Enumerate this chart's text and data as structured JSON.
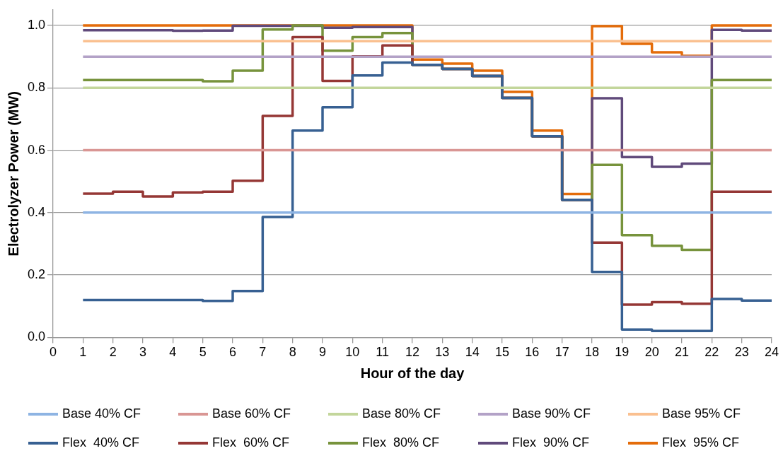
{
  "chart_data": {
    "type": "step",
    "xlabel": "Hour of the day",
    "ylabel": "Electrolyzer Power (MW)",
    "x": [
      1,
      2,
      3,
      4,
      5,
      6,
      7,
      8,
      9,
      10,
      11,
      12,
      13,
      14,
      15,
      16,
      17,
      18,
      19,
      20,
      21,
      22,
      23,
      24
    ],
    "xlim": [
      0,
      24
    ],
    "xticks": [
      0,
      1,
      2,
      3,
      4,
      5,
      6,
      7,
      8,
      9,
      10,
      11,
      12,
      13,
      14,
      15,
      16,
      17,
      18,
      19,
      20,
      21,
      22,
      23,
      24
    ],
    "ylim": [
      0,
      1.05
    ],
    "yticks": [
      {
        "value": 0,
        "label": "0.0"
      },
      {
        "value": 0.2,
        "label": "0.2"
      },
      {
        "value": 0.4,
        "label": "0.4"
      },
      {
        "value": 0.6,
        "label": "0.6"
      },
      {
        "value": 0.8,
        "label": "0.8"
      },
      {
        "value": 1,
        "label": "1.0"
      }
    ],
    "grid": "y",
    "legend": "bottom",
    "series": [
      {
        "name": "Base 40% CF",
        "color": "#8eb4e3",
        "values": [
          0.4,
          0.4,
          0.4,
          0.4,
          0.4,
          0.4,
          0.4,
          0.4,
          0.4,
          0.4,
          0.4,
          0.4,
          0.4,
          0.4,
          0.4,
          0.4,
          0.4,
          0.4,
          0.4,
          0.4,
          0.4,
          0.4,
          0.4,
          0.4
        ]
      },
      {
        "name": "Base 60% CF",
        "color": "#d99694",
        "values": [
          0.6,
          0.6,
          0.6,
          0.6,
          0.6,
          0.6,
          0.6,
          0.6,
          0.6,
          0.6,
          0.6,
          0.6,
          0.6,
          0.6,
          0.6,
          0.6,
          0.6,
          0.6,
          0.6,
          0.6,
          0.6,
          0.6,
          0.6,
          0.6
        ]
      },
      {
        "name": "Base 80% CF",
        "color": "#c3d69b",
        "values": [
          0.8,
          0.8,
          0.8,
          0.8,
          0.8,
          0.8,
          0.8,
          0.8,
          0.8,
          0.8,
          0.8,
          0.8,
          0.8,
          0.8,
          0.8,
          0.8,
          0.8,
          0.8,
          0.8,
          0.8,
          0.8,
          0.8,
          0.8,
          0.8
        ]
      },
      {
        "name": "Base 90% CF",
        "color": "#b3a2c7",
        "values": [
          0.9,
          0.9,
          0.9,
          0.9,
          0.9,
          0.9,
          0.9,
          0.9,
          0.9,
          0.9,
          0.9,
          0.9,
          0.9,
          0.9,
          0.9,
          0.9,
          0.9,
          0.9,
          0.9,
          0.9,
          0.9,
          0.9,
          0.9,
          0.9
        ]
      },
      {
        "name": "Base 95% CF",
        "color": "#fac090",
        "values": [
          0.95,
          0.95,
          0.95,
          0.95,
          0.95,
          0.95,
          0.95,
          0.95,
          0.95,
          0.95,
          0.95,
          0.95,
          0.95,
          0.95,
          0.95,
          0.95,
          0.95,
          0.95,
          0.95,
          0.95,
          0.95,
          0.95,
          0.95,
          0.95
        ]
      },
      {
        "name": "Flex  40% CF",
        "color": "#376092",
        "values": [
          0.12,
          0.12,
          0.12,
          0.12,
          0.117,
          0.149,
          0.386,
          0.663,
          0.738,
          0.84,
          0.881,
          0.874,
          0.861,
          0.838,
          0.768,
          0.645,
          0.441,
          0.21,
          0.025,
          0.021,
          0.021,
          0.123,
          0.118,
          0.118
        ]
      },
      {
        "name": "Flex  60% CF",
        "color": "#953735",
        "values": [
          0.461,
          0.467,
          0.452,
          0.465,
          0.467,
          0.502,
          0.71,
          0.963,
          0.822,
          0.901,
          0.936,
          0.874,
          0.861,
          0.838,
          0.768,
          0.645,
          0.441,
          0.304,
          0.105,
          0.113,
          0.108,
          0.467,
          0.467,
          0.467
        ]
      },
      {
        "name": "Flex  80% CF",
        "color": "#77933c",
        "values": [
          0.825,
          0.825,
          0.825,
          0.825,
          0.821,
          0.855,
          0.987,
          1.0,
          0.919,
          0.963,
          0.976,
          0.874,
          0.861,
          0.838,
          0.768,
          0.645,
          0.441,
          0.553,
          0.328,
          0.294,
          0.281,
          0.825,
          0.825,
          0.825
        ]
      },
      {
        "name": "Flex  90% CF",
        "color": "#604a7b",
        "values": [
          0.985,
          0.985,
          0.985,
          0.983,
          0.984,
          0.999,
          0.999,
          0.999,
          0.993,
          0.995,
          0.995,
          0.874,
          0.861,
          0.838,
          0.768,
          0.645,
          0.441,
          0.767,
          0.578,
          0.547,
          0.557,
          0.986,
          0.984,
          0.984
        ]
      },
      {
        "name": "Flex  95% CF",
        "color": "#e46c0a",
        "values": [
          1.0,
          1.0,
          1.0,
          1.0,
          1.0,
          1.0,
          1.0,
          1.0,
          1.0,
          1.0,
          1.0,
          0.891,
          0.878,
          0.855,
          0.787,
          0.663,
          0.46,
          0.998,
          0.941,
          0.914,
          0.903,
          1.0,
          1.0,
          1.0
        ]
      }
    ]
  }
}
